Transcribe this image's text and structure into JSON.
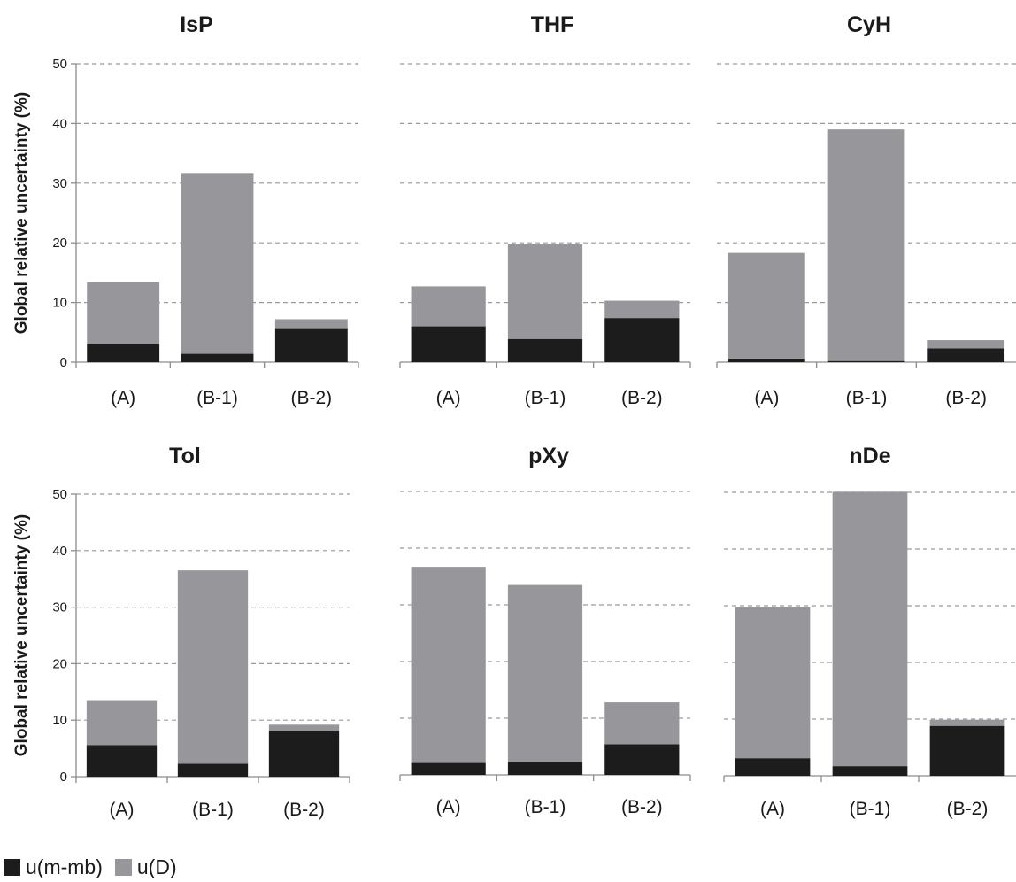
{
  "chart_data": [
    {
      "type": "bar",
      "title": "IsP",
      "categories": [
        "(A)",
        "(B-1)",
        "(B-2)"
      ],
      "ylabel": "Global relative uncertainty (%)",
      "ylim": [
        0,
        50
      ],
      "yticks": [
        "0",
        "10",
        "20",
        "30",
        "40",
        "50"
      ],
      "stacked": true,
      "grid": true,
      "series": [
        {
          "name": "u(m-mb)",
          "values": [
            3.1,
            1.4,
            5.7
          ]
        },
        {
          "name": "u(D)",
          "values": [
            10.3,
            30.3,
            1.5
          ]
        }
      ]
    },
    {
      "type": "bar",
      "title": "THF",
      "categories": [
        "(A)",
        "(B-1)",
        "(B-2)"
      ],
      "ylim": [
        0,
        50
      ],
      "stacked": true,
      "grid": true,
      "series": [
        {
          "name": "u(m-mb)",
          "values": [
            6.0,
            3.9,
            7.4
          ]
        },
        {
          "name": "u(D)",
          "values": [
            6.7,
            15.9,
            2.9
          ]
        }
      ]
    },
    {
      "type": "bar",
      "title": "CyH",
      "categories": [
        "(A)",
        "(B-1)",
        "(B-2)"
      ],
      "ylim": [
        0,
        50
      ],
      "stacked": true,
      "grid": true,
      "series": [
        {
          "name": "u(m-mb)",
          "values": [
            0.6,
            0.2,
            2.3
          ]
        },
        {
          "name": "u(D)",
          "values": [
            17.7,
            38.8,
            1.4
          ]
        }
      ]
    },
    {
      "type": "bar",
      "title": "Tol",
      "categories": [
        "(A)",
        "(B-1)",
        "(B-2)"
      ],
      "ylabel": "Global relative uncertainty (%)",
      "ylim": [
        0,
        50
      ],
      "yticks": [
        "0",
        "10",
        "20",
        "30",
        "40",
        "50"
      ],
      "stacked": true,
      "grid": true,
      "series": [
        {
          "name": "u(m-mb)",
          "values": [
            5.6,
            2.3,
            8.1
          ]
        },
        {
          "name": "u(D)",
          "values": [
            7.8,
            34.2,
            1.1
          ]
        }
      ]
    },
    {
      "type": "bar",
      "title": "pXy",
      "categories": [
        "(A)",
        "(B-1)",
        "(B-2)"
      ],
      "ylim": [
        0,
        50
      ],
      "stacked": true,
      "grid": true,
      "series": [
        {
          "name": "u(m-mb)",
          "values": [
            2.1,
            2.3,
            5.4
          ]
        },
        {
          "name": "u(D)",
          "values": [
            34.6,
            31.2,
            7.4
          ]
        }
      ]
    },
    {
      "type": "bar",
      "title": "nDe",
      "categories": [
        "(A)",
        "(B-1)",
        "(B-2)"
      ],
      "ylim": [
        0,
        50
      ],
      "stacked": true,
      "grid": true,
      "series": [
        {
          "name": "u(m-mb)",
          "values": [
            3.1,
            1.7,
            8.8
          ]
        },
        {
          "name": "u(D)",
          "values": [
            26.6,
            48.4,
            1.1
          ]
        }
      ]
    }
  ],
  "legend": {
    "position": "bottom-left",
    "items": [
      {
        "label": "u(m-mb)",
        "color": "#1c1c1c"
      },
      {
        "label": "u(D)",
        "color": "#97979b"
      }
    ]
  },
  "colors": {
    "u_m_mb": "#1c1c1c",
    "u_D": "#97979b",
    "grid": "#9a9a9a",
    "axis": "#8c8c8c"
  }
}
